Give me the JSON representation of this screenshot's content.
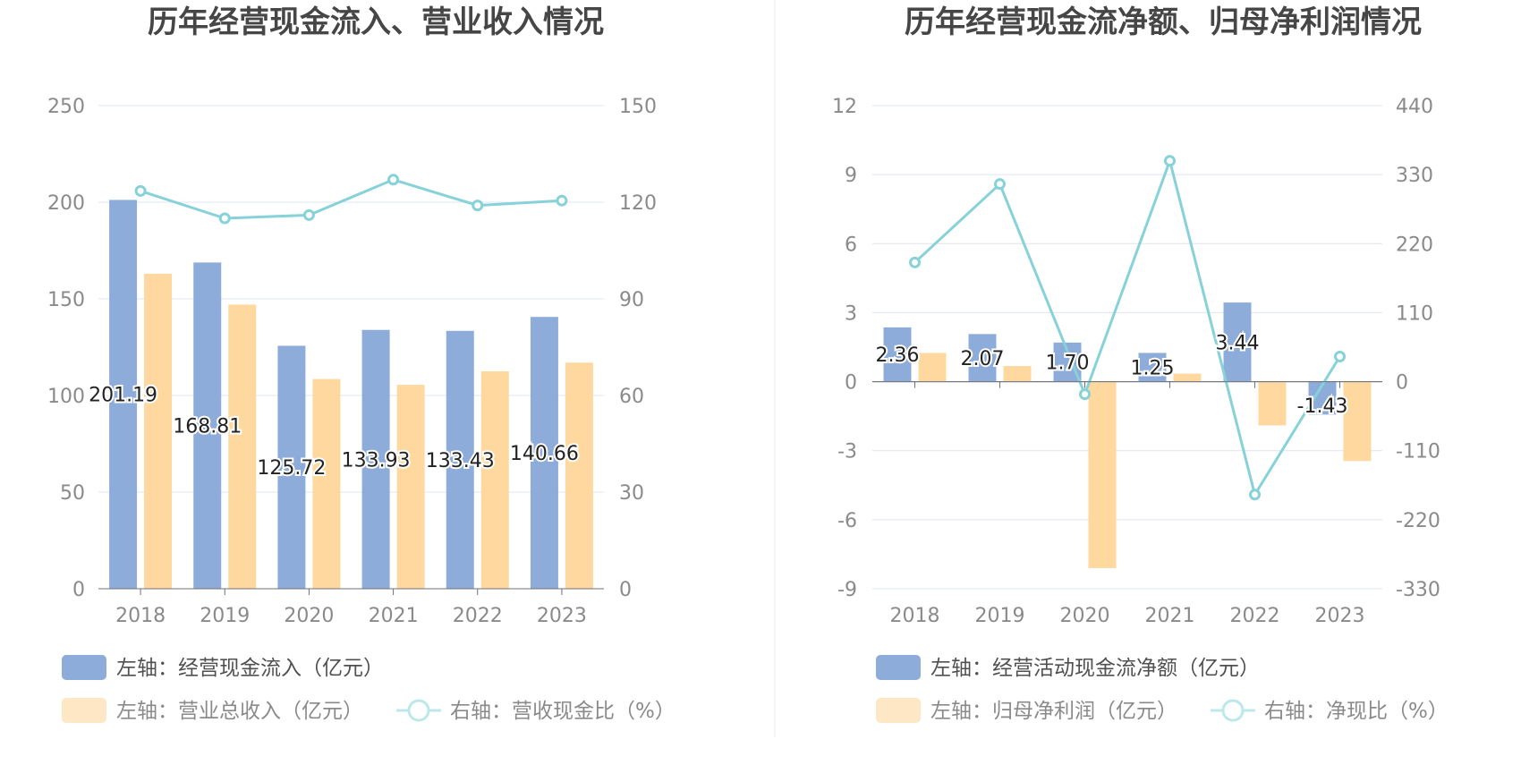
{
  "colors": {
    "bar_primary": "#8eacd9",
    "bar_secondary": "#fed89e",
    "line": "#86d2d8",
    "grid": "#dfe4f1",
    "divider": "#ececec"
  },
  "chart_data": [
    {
      "type": "bar",
      "title": "历年经营现金流入、营业收入情况",
      "categories": [
        "2018",
        "2019",
        "2020",
        "2021",
        "2022",
        "2023"
      ],
      "left_axis": {
        "ylim": [
          0,
          250
        ],
        "ticks": [
          "0",
          "50",
          "100",
          "150",
          "200",
          "250"
        ]
      },
      "right_axis": {
        "ylim": [
          0,
          150
        ],
        "ticks": [
          "0",
          "30",
          "60",
          "90",
          "120",
          "150"
        ]
      },
      "series": [
        {
          "name": "左轴：经营现金流入（亿元）",
          "type": "bar",
          "axis": "left",
          "values": [
            201.19,
            168.81,
            125.72,
            133.93,
            133.43,
            140.66
          ],
          "labels": [
            "201.19",
            "168.81",
            "125.72",
            "133.93",
            "133.43",
            "140.66"
          ]
        },
        {
          "name": "左轴：营业总收入（亿元）",
          "type": "bar",
          "axis": "left",
          "values": [
            163,
            147,
            108.5,
            105.5,
            112.5,
            117
          ]
        },
        {
          "name": "右轴：营收现金比（%）",
          "type": "line",
          "axis": "right",
          "values": [
            123.5,
            115,
            116,
            127,
            119,
            120.5
          ]
        }
      ],
      "legend": {
        "position": "bottom"
      },
      "grid": true
    },
    {
      "type": "bar",
      "title": "历年经营现金流净额、归母净利润情况",
      "categories": [
        "2018",
        "2019",
        "2020",
        "2021",
        "2022",
        "2023"
      ],
      "left_axis": {
        "ylim": [
          -9,
          12
        ],
        "ticks": [
          "-9",
          "-6",
          "-3",
          "0",
          "3",
          "6",
          "9",
          "12"
        ]
      },
      "right_axis": {
        "ylim": [
          -330,
          440
        ],
        "ticks": [
          "-330",
          "-220",
          "-110",
          "0",
          "110",
          "220",
          "330",
          "440"
        ]
      },
      "series": [
        {
          "name": "左轴：经营活动现金流净额（亿元）",
          "type": "bar",
          "axis": "left",
          "values": [
            2.36,
            2.07,
            1.7,
            1.25,
            3.44,
            -1.43
          ],
          "labels": [
            "2.36",
            "2.07",
            "1.70",
            "1.25",
            "3.44",
            "-1.43"
          ]
        },
        {
          "name": "左轴：归母净利润（亿元）",
          "type": "bar",
          "axis": "left",
          "values": [
            1.25,
            0.68,
            -8.1,
            0.35,
            -1.9,
            -3.45
          ]
        },
        {
          "name": "右轴：净现比（%）",
          "type": "line",
          "axis": "right",
          "values": [
            190,
            315,
            -20,
            352,
            -180,
            40
          ]
        }
      ],
      "legend": {
        "position": "bottom"
      },
      "grid": true
    }
  ]
}
